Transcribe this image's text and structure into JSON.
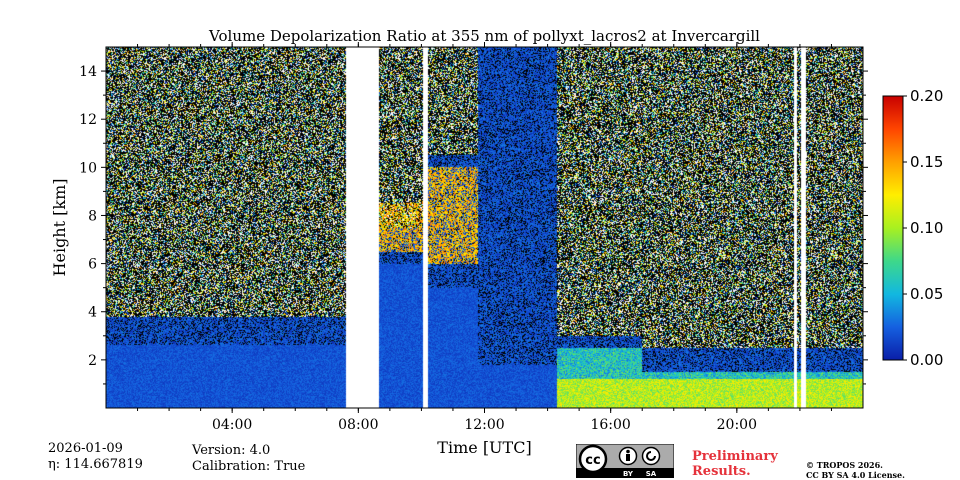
{
  "chart_data": {
    "type": "heatmap",
    "title": "Volume Depolarization Ratio at 355 nm of pollyxt_lacros2 at Invercargill",
    "xlabel": "Time [UTC]",
    "ylabel": "Height [km]",
    "xlim_hours": [
      0,
      24
    ],
    "ylim_km": [
      0,
      15
    ],
    "x_ticks": [
      {
        "hour": 4,
        "label": "04:00"
      },
      {
        "hour": 8,
        "label": "08:00"
      },
      {
        "hour": 12,
        "label": "12:00"
      },
      {
        "hour": 16,
        "label": "16:00"
      },
      {
        "hour": 20,
        "label": "20:00"
      }
    ],
    "y_ticks": [
      {
        "km": 2,
        "label": "2"
      },
      {
        "km": 4,
        "label": "4"
      },
      {
        "km": 6,
        "label": "6"
      },
      {
        "km": 8,
        "label": "8"
      },
      {
        "km": 10,
        "label": "10"
      },
      {
        "km": 12,
        "label": "12"
      },
      {
        "km": 14,
        "label": "14"
      }
    ],
    "colorbar": {
      "range": [
        0.0,
        0.2
      ],
      "ticks": [
        {
          "value": 0.0,
          "label": "0.00"
        },
        {
          "value": 0.05,
          "label": "0.05"
        },
        {
          "value": 0.1,
          "label": "0.10"
        },
        {
          "value": 0.15,
          "label": "0.15"
        },
        {
          "value": 0.2,
          "label": "0.20"
        }
      ],
      "colormap": [
        "#0a1ea8",
        "#1560e0",
        "#12b8e0",
        "#3ed88a",
        "#a8f020",
        "#ffee00",
        "#ffa000",
        "#ff4500",
        "#c80000"
      ]
    },
    "gaps_hours": [
      [
        7.6,
        8.65
      ],
      [
        10.05,
        10.2
      ],
      [
        21.8,
        21.9
      ],
      [
        22.05,
        22.2
      ]
    ],
    "segments": [
      {
        "start": 0.0,
        "end": 7.6,
        "aerosol_top_km": 2.6,
        "noise_start_km": 3.8,
        "cloud": [
          [
            0.0,
            0.0,
            0.0
          ]
        ]
      },
      {
        "start": 8.65,
        "end": 10.05,
        "aerosol_top_km": 6.0,
        "noise_start_km": 7.5,
        "cloud": [
          [
            6.5,
            8.5,
            0.14
          ]
        ]
      },
      {
        "start": 10.2,
        "end": 11.8,
        "aerosol_top_km": 5.0,
        "noise_start_km": 10.5,
        "cloud": [
          [
            6.0,
            10.0,
            0.14
          ]
        ]
      },
      {
        "start": 11.8,
        "end": 14.3,
        "aerosol_top_km": 1.8,
        "noise_start_km": 15.0,
        "cloud": [
          [
            0.0,
            0.0,
            0.0
          ]
        ]
      },
      {
        "start": 14.3,
        "end": 17.0,
        "aerosol_top_km": 2.5,
        "noise_start_km": 3.0,
        "cloud": [
          [
            0.0,
            0.0,
            0.0
          ]
        ]
      },
      {
        "start": 17.0,
        "end": 24.0,
        "aerosol_top_km": 1.5,
        "noise_start_km": 2.5,
        "cloud": [
          [
            0.0,
            0.0,
            0.0
          ]
        ]
      }
    ]
  },
  "meta": {
    "date": "2026-01-09",
    "eta": "η: 114.667819",
    "version": "Version: 4.0",
    "calibration": "Calibration: True",
    "preliminary_line1": "Preliminary",
    "preliminary_line2": "Results.",
    "copyright_line1": "© TROPOS 2026.",
    "copyright_line2": "CC BY SA 4.0 License.",
    "license_badge": {
      "cc": "cc",
      "by": "BY",
      "sa": "SA"
    }
  }
}
